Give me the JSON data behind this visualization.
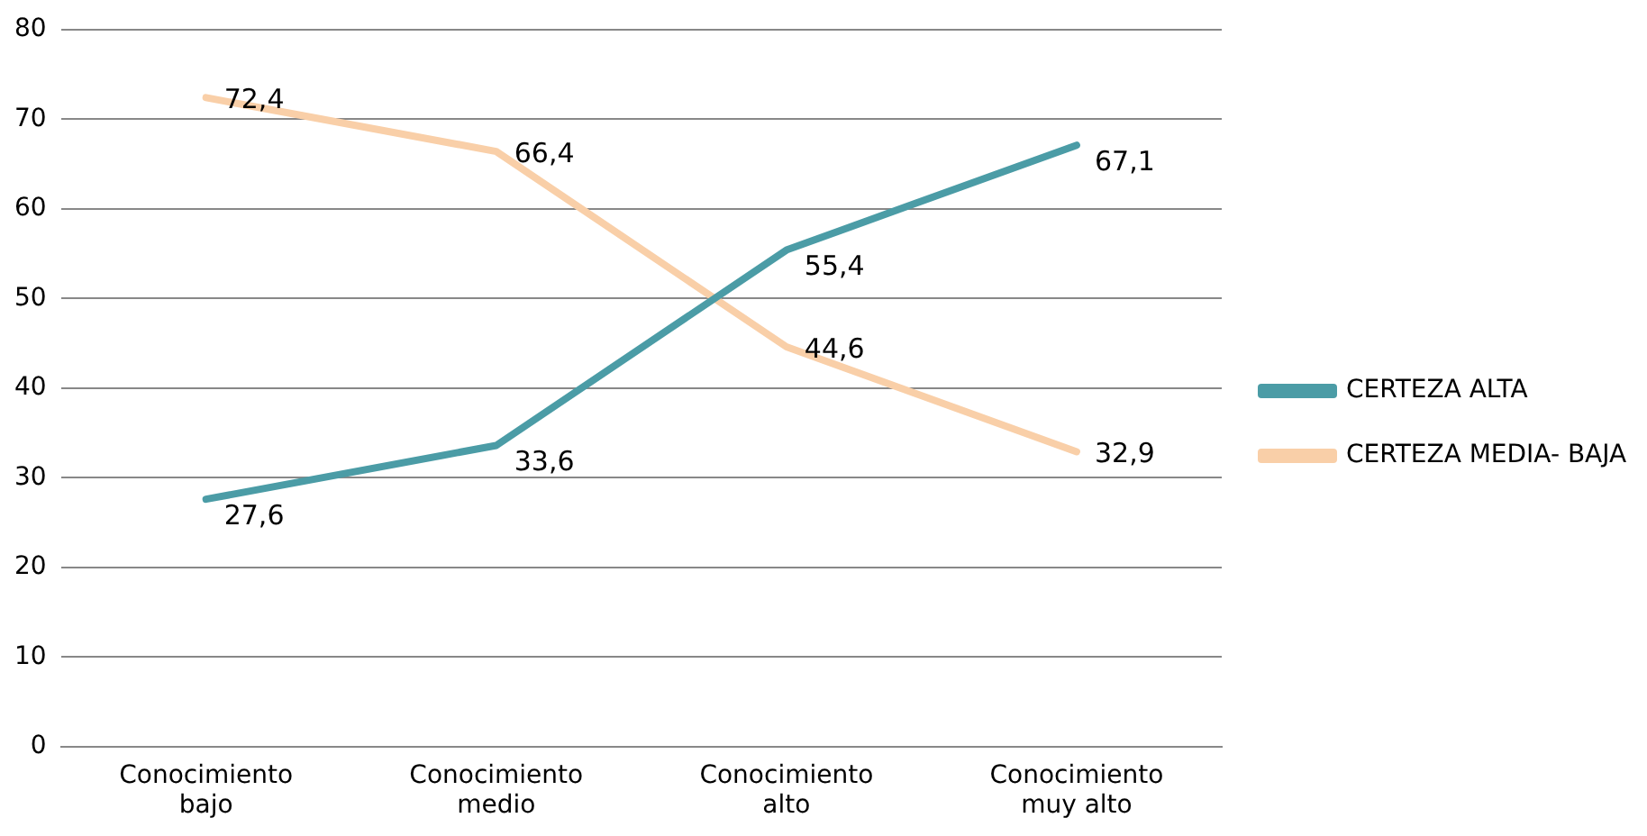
{
  "chart_data": {
    "type": "line",
    "categories": [
      "Conocimiento bajo",
      "Conocimiento medio",
      "Conocimiento alto",
      "Conocimiento muy alto"
    ],
    "series": [
      {
        "name": "CERTEZA ALTA",
        "color": "#4b9ca6",
        "values": [
          27.6,
          33.6,
          55.4,
          67.1
        ],
        "value_labels": [
          "27,6",
          "33,6",
          "55,4",
          "67,1"
        ]
      },
      {
        "name": "CERTEZA MEDIA- BAJA",
        "color": "#f9cfa8",
        "values": [
          72.4,
          66.4,
          44.6,
          32.9
        ],
        "value_labels": [
          "72,4",
          "66,4",
          "44,6",
          "32,9"
        ]
      }
    ],
    "ylim": [
      0,
      80
    ],
    "yticks": [
      0,
      10,
      20,
      30,
      40,
      50,
      60,
      70,
      80
    ],
    "grid": "y",
    "legend": "right",
    "marker": "none",
    "line_style": "solid"
  }
}
